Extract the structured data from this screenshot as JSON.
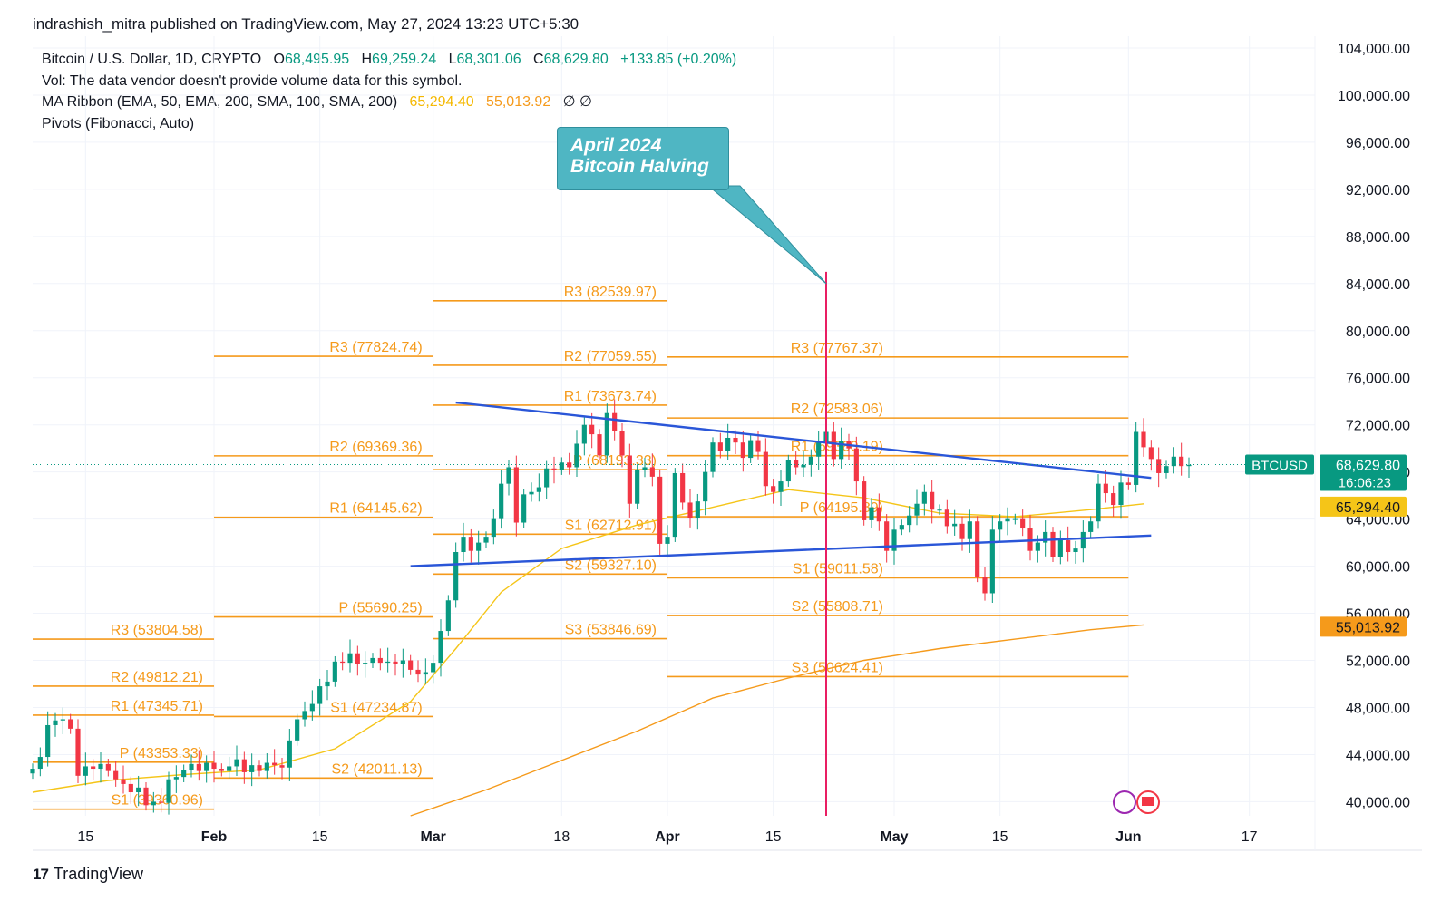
{
  "header": {
    "publisher_line": "indrashish_mitra published on TradingView.com, May 27, 2024 13:23 UTC+5:30"
  },
  "legend": {
    "symbol": "Bitcoin / U.S. Dollar, 1D, CRYPTO",
    "open_label": "O",
    "open_value": "68,495.95",
    "high_label": "H",
    "high_value": "69,259.24",
    "low_label": "L",
    "low_value": "68,301.06",
    "close_label": "C",
    "close_value": "68,629.80",
    "change": "+133.85 (+0.20%)",
    "vol_line": "Vol: The data vendor doesn't provide volume data for this symbol.",
    "ma_label": "MA Ribbon (EMA, 50, EMA, 200, SMA, 100, SMA, 200)",
    "ma_value_1": "65,294.40",
    "ma_value_2": "55,013.92",
    "ma_na": "∅ ∅",
    "pivots_label": "Pivots (Fibonacci, Auto)"
  },
  "callout": {
    "line1": "April 2024",
    "line2": "Bitcoin Halving"
  },
  "footer": {
    "brand": "TradingView",
    "logo_glyph": "17"
  },
  "colors": {
    "up": "#089981",
    "down": "#f23645",
    "pivot": "#f59a1b",
    "trend": "#2a56d8",
    "halving": "#e91e63",
    "ema50": "#f5c518",
    "sma": "#f59a1b"
  },
  "chart_data": {
    "type": "candlestick",
    "symbol": "BTCUSD",
    "timeframe": "1D",
    "ylim": [
      38800,
      105000
    ],
    "y_ticks": [
      "104,000.00",
      "100,000.00",
      "96,000.00",
      "92,000.00",
      "88,000.00",
      "84,000.00",
      "80,000.00",
      "76,000.00",
      "72,000.00",
      "68,000.00",
      "64,000.00",
      "60,000.00",
      "56,000.00",
      "52,000.00",
      "48,000.00",
      "44,000.00",
      "40,000.00"
    ],
    "y_tick_values": [
      104000,
      100000,
      96000,
      92000,
      88000,
      84000,
      80000,
      76000,
      72000,
      68000,
      64000,
      60000,
      56000,
      52000,
      48000,
      44000,
      40000
    ],
    "x_range_days": [
      0,
      162
    ],
    "x_ticks": [
      {
        "label": "15",
        "day": 7
      },
      {
        "label": "Feb",
        "day": 24
      },
      {
        "label": "15",
        "day": 38
      },
      {
        "label": "Mar",
        "day": 53
      },
      {
        "label": "18",
        "day": 70
      },
      {
        "label": "Apr",
        "day": 84
      },
      {
        "label": "15",
        "day": 98
      },
      {
        "label": "May",
        "day": 114
      },
      {
        "label": "15",
        "day": 128
      },
      {
        "label": "Jun",
        "day": 145
      },
      {
        "label": "17",
        "day": 161
      }
    ],
    "price_tags": [
      {
        "label": "BTCUSD",
        "value": "68,629.80",
        "sub": "16:06:23",
        "y": 68629.8
      },
      {
        "label": "",
        "value": "65,294.40",
        "y": 65294.4
      },
      {
        "label": "",
        "value": "55,013.92",
        "y": 55013.92
      }
    ],
    "closes": [
      42800,
      43800,
      46500,
      46900,
      47000,
      46200,
      42200,
      43000,
      42800,
      43200,
      42600,
      41900,
      41500,
      40800,
      41200,
      39700,
      40000,
      39900,
      41900,
      42100,
      42700,
      43200,
      42600,
      43300,
      42800,
      42600,
      43000,
      43600,
      42500,
      43100,
      42600,
      43300,
      43100,
      42900,
      45200,
      47000,
      47700,
      48300,
      49800,
      50200,
      51900,
      51800,
      52600,
      51700,
      51800,
      52200,
      51800,
      51900,
      51700,
      52000,
      51200,
      50800,
      51000,
      51800,
      54500,
      57100,
      61200,
      62500,
      61300,
      62000,
      62500,
      64000,
      67000,
      68400,
      63700,
      66100,
      66300,
      66700,
      68300,
      68200,
      68800,
      68400,
      70400,
      72000,
      71200,
      69400,
      73000,
      71500,
      69400,
      65300,
      68200,
      68400,
      67600,
      61900,
      62500,
      67900,
      65400,
      64100,
      65500,
      68000,
      70500,
      69800,
      70900,
      70500,
      69200,
      70700,
      69700,
      66800,
      66300,
      67200,
      69000,
      68400,
      68600,
      69300,
      70500,
      71400,
      69100,
      70600,
      70000,
      67200,
      63900,
      65000,
      63800,
      61300,
      63100,
      63500,
      64300,
      65300,
      66300,
      64800,
      64800,
      63400,
      63600,
      62300,
      63800,
      59100,
      57700,
      63100,
      63800,
      64000,
      64000,
      63200,
      61300,
      62000,
      62900,
      60800,
      62200,
      61200,
      61500,
      62900,
      63800,
      67000,
      66200,
      65200,
      67100,
      66900,
      71400,
      70100,
      69100,
      67900,
      68500,
      69300,
      68500,
      68600
    ],
    "pivot_levels": [
      {
        "label": "R3 (53804.58)",
        "value": 53804.58,
        "period": "Jan"
      },
      {
        "label": "R2 (49812.21)",
        "value": 49812.21,
        "period": "Jan"
      },
      {
        "label": "R1 (47345.71)",
        "value": 47345.71,
        "period": "Jan"
      },
      {
        "label": "P (43353.33)",
        "value": 43353.33,
        "period": "Jan"
      },
      {
        "label": "S1 (39360.96)",
        "value": 39360.96,
        "period": "Jan"
      },
      {
        "label": "R3 (77824.74)",
        "value": 77824.74,
        "period": "Feb"
      },
      {
        "label": "R2 (69369.36)",
        "value": 69369.36,
        "period": "Feb"
      },
      {
        "label": "R1 (64145.62)",
        "value": 64145.62,
        "period": "Feb"
      },
      {
        "label": "P (55690.25)",
        "value": 55690.25,
        "period": "Feb"
      },
      {
        "label": "S1 (47234.87)",
        "value": 47234.87,
        "period": "Feb"
      },
      {
        "label": "S2 (42011.13)",
        "value": 42011.13,
        "period": "Feb"
      },
      {
        "label": "R3 (82539.97)",
        "value": 82539.97,
        "period": "Mar"
      },
      {
        "label": "R2 (77059.55)",
        "value": 77059.55,
        "period": "Mar"
      },
      {
        "label": "R1 (73673.74)",
        "value": 73673.74,
        "period": "Mar"
      },
      {
        "label": "P (68193.33)",
        "value": 68193.33,
        "period": "Mar"
      },
      {
        "label": "S1 (62712.91)",
        "value": 62712.91,
        "period": "Mar"
      },
      {
        "label": "S2 (59327.10)",
        "value": 59327.1,
        "period": "Mar"
      },
      {
        "label": "S3 (53846.69)",
        "value": 53846.69,
        "period": "Mar"
      },
      {
        "label": "R3 (77767.37)",
        "value": 77767.37,
        "period": "Apr"
      },
      {
        "label": "R2 (72583.06)",
        "value": 72583.06,
        "period": "Apr"
      },
      {
        "label": "R1 (69380.19)",
        "value": 69380.19,
        "period": "Apr"
      },
      {
        "label": "P (64195.89)",
        "value": 64195.89,
        "period": "Apr"
      },
      {
        "label": "S1 (59011.58)",
        "value": 59011.58,
        "period": "Apr"
      },
      {
        "label": "S2 (55808.71)",
        "value": 55808.71,
        "period": "Apr"
      },
      {
        "label": "S3 (50624.41)",
        "value": 50624.41,
        "period": "Apr"
      },
      {
        "label": "",
        "value": 77767.37,
        "period": "May"
      },
      {
        "label": "",
        "value": 72583.06,
        "period": "May"
      },
      {
        "label": "",
        "value": 69380.19,
        "period": "May"
      },
      {
        "label": "",
        "value": 64195.89,
        "period": "May"
      },
      {
        "label": "",
        "value": 59011.58,
        "period": "May"
      },
      {
        "label": "",
        "value": 55808.71,
        "period": "May"
      },
      {
        "label": "",
        "value": 50624.41,
        "period": "May"
      }
    ],
    "pivot_periods": {
      "Jan": [
        0,
        24
      ],
      "Feb": [
        24,
        53
      ],
      "Mar": [
        53,
        84
      ],
      "Apr": [
        84,
        114
      ],
      "May": [
        114,
        145
      ]
    },
    "trend_lines": [
      {
        "name": "upper-trendline",
        "from": {
          "day": 56,
          "value": 73900
        },
        "to": {
          "day": 148,
          "value": 67500
        }
      },
      {
        "name": "lower-trendline",
        "from": {
          "day": 50,
          "value": 60000
        },
        "to": {
          "day": 148,
          "value": 62600
        }
      }
    ],
    "ema50": [
      [
        0,
        40800
      ],
      [
        10,
        41800
      ],
      [
        20,
        42300
      ],
      [
        30,
        42700
      ],
      [
        40,
        44500
      ],
      [
        50,
        48500
      ],
      [
        56,
        53000
      ],
      [
        62,
        57800
      ],
      [
        70,
        61500
      ],
      [
        80,
        63500
      ],
      [
        90,
        65000
      ],
      [
        100,
        66500
      ],
      [
        110,
        65800
      ],
      [
        120,
        64500
      ],
      [
        130,
        64200
      ],
      [
        140,
        64800
      ],
      [
        147,
        65294
      ]
    ],
    "sma_long": [
      [
        50,
        38800
      ],
      [
        60,
        41000
      ],
      [
        70,
        43500
      ],
      [
        80,
        46000
      ],
      [
        90,
        48800
      ],
      [
        100,
        50500
      ],
      [
        110,
        52000
      ],
      [
        120,
        53000
      ],
      [
        130,
        53800
      ],
      [
        140,
        54600
      ],
      [
        147,
        55014
      ]
    ],
    "halving_day": 105,
    "current_price": 68629.8
  }
}
